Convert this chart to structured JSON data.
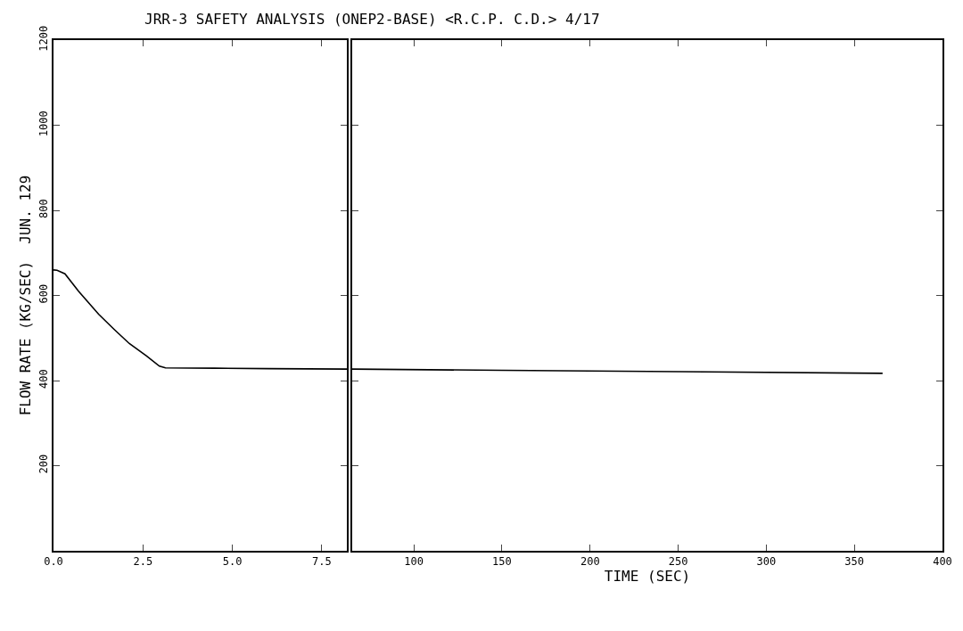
{
  "chart_data": [
    {
      "type": "line",
      "title": "JRR-3 SAFETY ANALYSIS (ONEP2-BASE) <R.C.P. C.D.> 4/17",
      "ylabel": "FLOW RATE (KG/SEC)  JUN. 129",
      "x": [
        0,
        0.1,
        0.32,
        0.7,
        1.26,
        1.7,
        2.12,
        2.6,
        2.96,
        3.13,
        4.5,
        6,
        8.2
      ],
      "series": [
        {
          "color": "#000000",
          "values": [
            660,
            659,
            651,
            610,
            556,
            520,
            487,
            458,
            434,
            430,
            429,
            428,
            427
          ]
        }
      ],
      "xlim": [
        0,
        8.2
      ],
      "xticks": [
        {
          "value": 0,
          "label": "0.0"
        },
        2.5,
        {
          "value": 5,
          "label": "5.0"
        },
        7.5
      ],
      "ylim": [
        0,
        1200
      ],
      "yticks": [
        200,
        400,
        600,
        800,
        1000,
        1200
      ]
    },
    {
      "type": "line",
      "xlabel": "TIME (SEC)",
      "x": [
        65,
        150,
        250,
        366
      ],
      "series": [
        {
          "color": "#000000",
          "values": [
            427,
            424,
            421,
            417
          ]
        }
      ],
      "xlim": [
        65,
        400
      ],
      "xticks": [
        100,
        150,
        200,
        250,
        300,
        350,
        400
      ],
      "ylim": [
        0,
        1200
      ],
      "yticks": [
        200,
        400,
        600,
        800,
        1000,
        1200
      ],
      "tick_labels": "x"
    }
  ]
}
